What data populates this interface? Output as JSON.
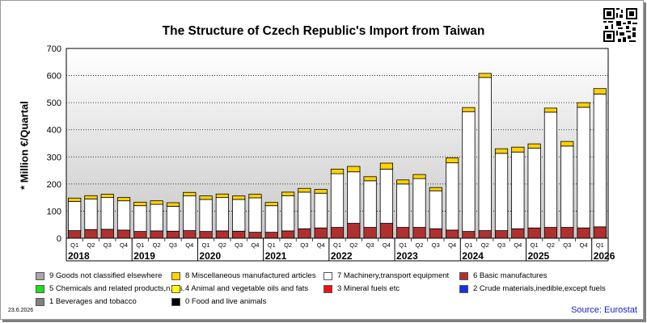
{
  "title": "The Structure of Czech Republic's Import from Taiwan",
  "date_label": "23.6.2026",
  "source_label": "Source: Eurostat",
  "qr_icon": "qr-code-icon",
  "chart_data": {
    "type": "bar",
    "stacked": true,
    "title": "The Structure of Czech Republic's Import from Taiwan",
    "xlabel": "",
    "ylabel": "* Million €/Quartal",
    "ylim": [
      0,
      700
    ],
    "yticks": [
      0,
      100,
      200,
      300,
      400,
      500,
      600,
      700
    ],
    "grid": true,
    "legend_position": "bottom",
    "categories": [
      "Q1",
      "Q2",
      "Q3",
      "Q4",
      "Q1",
      "Q2",
      "Q3",
      "Q4",
      "Q1",
      "Q2",
      "Q3",
      "Q4",
      "Q1",
      "Q2",
      "Q3",
      "Q4",
      "Q1",
      "Q2",
      "Q3",
      "Q4",
      "Q1",
      "Q2",
      "Q3",
      "Q4",
      "Q1",
      "Q2",
      "Q3",
      "Q4",
      "Q1",
      "Q2",
      "Q3",
      "Q4",
      "Q1"
    ],
    "years": [
      "2018",
      "2019",
      "2020",
      "2021",
      "2022",
      "2023",
      "2024",
      "2025",
      "2026"
    ],
    "series": [
      {
        "name": "6 Basic manufactures",
        "color": "#b03030",
        "values": [
          28,
          32,
          33,
          30,
          25,
          27,
          26,
          28,
          25,
          27,
          26,
          22,
          22,
          27,
          35,
          38,
          40,
          55,
          40,
          55,
          40,
          40,
          35,
          30,
          25,
          28,
          28,
          35,
          38,
          40,
          40,
          38,
          42
        ]
      },
      {
        "name": "7 Machinery,transport equipment",
        "color": "#ffffff",
        "values": [
          108,
          113,
          117,
          108,
          95,
          98,
          92,
          128,
          118,
          123,
          117,
          127,
          98,
          130,
          135,
          128,
          198,
          190,
          172,
          200,
          160,
          180,
          140,
          248,
          442,
          565,
          285,
          283,
          294,
          425,
          300,
          445,
          490
        ]
      },
      {
        "name": "8 Miscellaneous manufactured articles",
        "color": "#ffd200",
        "values": [
          12,
          12,
          12,
          12,
          13,
          13,
          13,
          13,
          13,
          13,
          13,
          13,
          12,
          13,
          14,
          14,
          17,
          20,
          15,
          22,
          15,
          15,
          12,
          18,
          15,
          15,
          17,
          18,
          16,
          15,
          17,
          17,
          20
        ]
      }
    ],
    "legend": [
      {
        "label": "9 Goods not classified elsewhere",
        "color": "#a8a8a8"
      },
      {
        "label": "8 Miscellaneous manufactured articles",
        "color": "#ffd200"
      },
      {
        "label": "7 Machinery,transport equipment",
        "color": "#ffffff"
      },
      {
        "label": "6 Basic manufactures",
        "color": "#b03030"
      },
      {
        "label": "5 Chemicals and related products,n.e.s.",
        "color": "#22dd22"
      },
      {
        "label": "4 Animal and vegetable oils and fats",
        "color": "#ffff00"
      },
      {
        "label": "3 Mineral fuels etc",
        "color": "#ee1111"
      },
      {
        "label": "2 Crude materials,inedible,except fuels",
        "color": "#1133ee"
      },
      {
        "label": "1 Beverages and tobacco",
        "color": "#808080"
      },
      {
        "label": "0 Food and live animals",
        "color": "#000000"
      }
    ]
  }
}
